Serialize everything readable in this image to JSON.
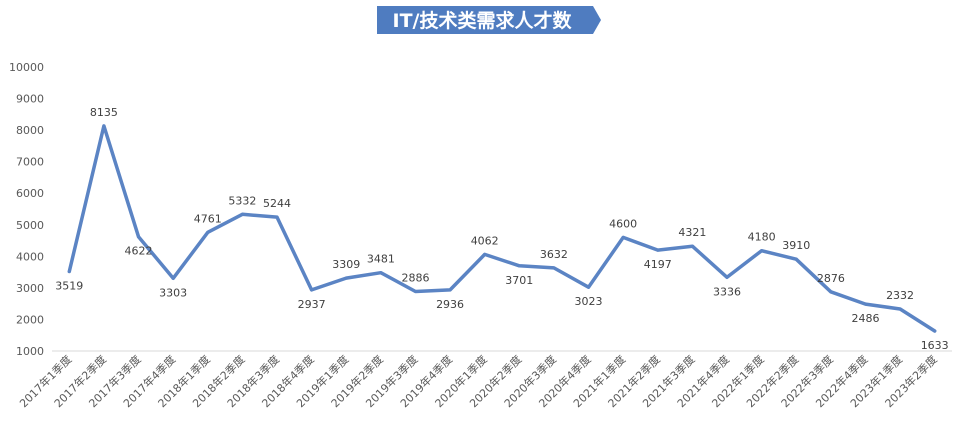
{
  "chart_data": {
    "type": "line",
    "title": "IT/技术类需求人才数",
    "xlabel": "",
    "ylabel": "",
    "ylim": [
      1000,
      10000
    ],
    "yticks": [
      1000,
      2000,
      3000,
      4000,
      5000,
      6000,
      7000,
      8000,
      9000,
      10000
    ],
    "grid": false,
    "legend": "none",
    "line_color": "#5B84C4",
    "title_bg_color": "#4F7CC0",
    "categories": [
      "2017年1季度",
      "2017年2季度",
      "2017年3季度",
      "2017年4季度",
      "2018年1季度",
      "2018年2季度",
      "2018年3季度",
      "2018年4季度",
      "2019年1季度",
      "2019年2季度",
      "2019年3季度",
      "2019年4季度",
      "2020年1季度",
      "2020年2季度",
      "2020年3季度",
      "2020年4季度",
      "2021年1季度",
      "2021年2季度",
      "2021年3季度",
      "2021年4季度",
      "2022年1季度",
      "2022年2季度",
      "2022年3季度",
      "2022年4季度",
      "2023年1季度",
      "2023年2季度"
    ],
    "values": [
      3519,
      8135,
      4622,
      3303,
      4761,
      5332,
      5244,
      2937,
      3309,
      3481,
      2886,
      2936,
      4062,
      3701,
      3632,
      3023,
      4600,
      4197,
      4321,
      3336,
      4180,
      3910,
      2876,
      2486,
      2332,
      1633
    ],
    "label_position": [
      "below",
      "above",
      "below",
      "below",
      "above",
      "above",
      "above",
      "below",
      "above",
      "above",
      "above",
      "below",
      "above",
      "below",
      "above",
      "below",
      "above",
      "below",
      "above",
      "below",
      "above",
      "above",
      "above",
      "below",
      "above",
      "below"
    ]
  }
}
